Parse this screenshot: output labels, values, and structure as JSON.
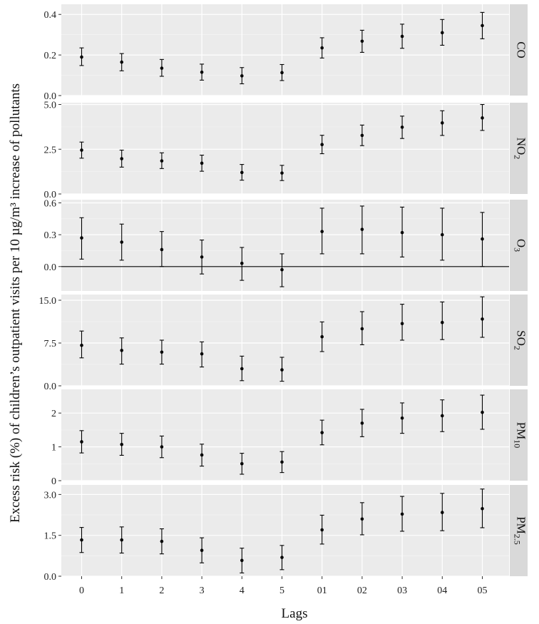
{
  "chart_data": {
    "type": "scatter",
    "subtype": "point-with-error-bars, faceted",
    "xlabel": "Lags",
    "ylabel": "Excess risk (%) of children’s outpatient visits per 10 µg/m³ increase of pollutants",
    "categories": [
      "0",
      "1",
      "2",
      "3",
      "4",
      "5",
      "01",
      "02",
      "03",
      "04",
      "05"
    ],
    "grid": true,
    "panels": [
      {
        "strip_label": "CO",
        "label_base": "CO",
        "label_sub": "",
        "ylim": [
          0,
          0.45
        ],
        "yticks": [
          0,
          0.2,
          0.4
        ],
        "ytick_labels": [
          "0.0",
          "0.2",
          "0.4"
        ],
        "zero_line": false,
        "estimate": [
          0.19,
          0.165,
          0.135,
          0.115,
          0.097,
          0.113,
          0.235,
          0.268,
          0.292,
          0.31,
          0.345
        ],
        "lower": [
          0.148,
          0.122,
          0.095,
          0.076,
          0.058,
          0.074,
          0.185,
          0.213,
          0.233,
          0.248,
          0.28
        ],
        "upper": [
          0.235,
          0.207,
          0.178,
          0.155,
          0.138,
          0.153,
          0.285,
          0.322,
          0.352,
          0.375,
          0.41
        ]
      },
      {
        "strip_label": "NO2",
        "label_base": "NO",
        "label_sub": "2",
        "ylim": [
          0,
          5.1
        ],
        "yticks": [
          0,
          2.5,
          5
        ],
        "ytick_labels": [
          "0.0",
          "2.5",
          "5.0"
        ],
        "zero_line": false,
        "estimate": [
          2.45,
          1.97,
          1.85,
          1.72,
          1.2,
          1.17,
          2.76,
          3.27,
          3.73,
          3.97,
          4.25
        ],
        "lower": [
          2.0,
          1.5,
          1.42,
          1.27,
          0.77,
          0.75,
          2.25,
          2.7,
          3.1,
          3.27,
          3.55
        ],
        "upper": [
          2.9,
          2.45,
          2.3,
          2.17,
          1.65,
          1.6,
          3.28,
          3.85,
          4.35,
          4.65,
          5.0
        ]
      },
      {
        "strip_label": "O3",
        "label_base": "O",
        "label_sub": "3",
        "ylim": [
          -0.23,
          0.63
        ],
        "yticks": [
          0,
          0.3,
          0.6
        ],
        "ytick_labels": [
          "0.0",
          "0.3",
          "0.6"
        ],
        "zero_line": true,
        "estimate": [
          0.27,
          0.23,
          0.16,
          0.09,
          0.03,
          -0.03,
          0.33,
          0.35,
          0.32,
          0.3,
          0.26
        ],
        "lower": [
          0.07,
          0.06,
          0.0,
          -0.07,
          -0.13,
          -0.19,
          0.12,
          0.12,
          0.09,
          0.06,
          0.0
        ],
        "upper": [
          0.46,
          0.4,
          0.33,
          0.25,
          0.18,
          0.12,
          0.55,
          0.57,
          0.56,
          0.55,
          0.51
        ]
      },
      {
        "strip_label": "SO2",
        "label_base": "SO",
        "label_sub": "2",
        "ylim": [
          0,
          16
        ],
        "yticks": [
          0,
          7.5,
          15
        ],
        "ytick_labels": [
          "0.0",
          "7.5",
          "15.0"
        ],
        "zero_line": false,
        "estimate": [
          7.1,
          6.2,
          5.9,
          5.6,
          3.0,
          2.8,
          8.6,
          10.0,
          10.9,
          11.1,
          11.7
        ],
        "lower": [
          4.9,
          3.8,
          3.8,
          3.3,
          0.9,
          0.8,
          6.0,
          7.2,
          8.0,
          8.1,
          8.5
        ],
        "upper": [
          9.6,
          8.4,
          8.0,
          7.7,
          5.2,
          5.0,
          11.2,
          13.0,
          14.3,
          14.7,
          15.6
        ]
      },
      {
        "strip_label": "PM10",
        "label_base": "PM",
        "label_sub": "10",
        "ylim": [
          0,
          2.7
        ],
        "yticks": [
          0,
          1,
          2
        ],
        "ytick_labels": [
          "0",
          "1",
          "2"
        ],
        "zero_line": false,
        "estimate": [
          1.15,
          1.07,
          1.0,
          0.76,
          0.5,
          0.55,
          1.42,
          1.7,
          1.85,
          1.92,
          2.02
        ],
        "lower": [
          0.82,
          0.75,
          0.68,
          0.43,
          0.19,
          0.24,
          1.06,
          1.3,
          1.4,
          1.45,
          1.52
        ],
        "upper": [
          1.48,
          1.4,
          1.32,
          1.08,
          0.81,
          0.86,
          1.79,
          2.11,
          2.3,
          2.39,
          2.53
        ]
      },
      {
        "strip_label": "PM2.5",
        "label_base": "PM",
        "label_sub": "2.5",
        "ylim": [
          0,
          3.35
        ],
        "yticks": [
          0,
          1.5,
          3
        ],
        "ytick_labels": [
          "0.0",
          "1.5",
          "3.0"
        ],
        "zero_line": false,
        "estimate": [
          1.33,
          1.33,
          1.28,
          0.95,
          0.58,
          0.69,
          1.7,
          2.1,
          2.28,
          2.34,
          2.48
        ],
        "lower": [
          0.87,
          0.85,
          0.82,
          0.49,
          0.12,
          0.24,
          1.18,
          1.52,
          1.65,
          1.67,
          1.78
        ],
        "upper": [
          1.79,
          1.81,
          1.74,
          1.41,
          1.03,
          1.13,
          2.24,
          2.7,
          2.93,
          3.04,
          3.2
        ]
      }
    ]
  }
}
